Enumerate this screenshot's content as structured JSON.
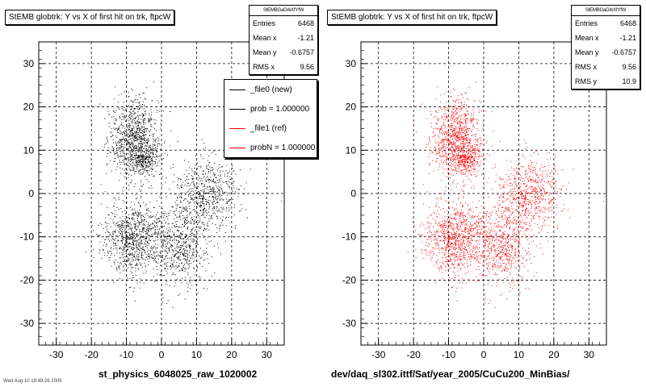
{
  "footer_text": "Wed Aug 10 18:49:26 2005",
  "chart_data": [
    {
      "type": "scatter",
      "title": "StEMB globtrk: Y vs X of first hit on trk, ftpcW",
      "xlabel": "st_physics_6048025_raw_1020002",
      "ylabel": "",
      "xlim": [
        -35,
        35
      ],
      "ylim": [
        -35,
        35
      ],
      "xticks": [
        -30,
        -20,
        -10,
        0,
        10,
        20,
        30
      ],
      "yticks": [
        -30,
        -20,
        -10,
        0,
        10,
        20,
        30
      ],
      "grid": true,
      "color": "#000000",
      "stats": {
        "name": "StEMBGaGrkXfYfW",
        "rows": [
          {
            "label": "Entries",
            "value": "6468"
          },
          {
            "label": "Mean x",
            "value": "-1.21"
          },
          {
            "label": "Mean y",
            "value": "-0.6757"
          },
          {
            "label": "RMS x",
            "value": "9.56"
          }
        ]
      },
      "legend": {
        "placement": "top-right",
        "entries": [
          {
            "label": "_file0 (new)",
            "color": "#000000"
          },
          {
            "label": "prob = 1.000000",
            "color": "#000000"
          },
          {
            "label": "_file1 (ref)",
            "color": "#ff0000"
          },
          {
            "label": "probN = 1.000000",
            "color": "#ff0000"
          }
        ]
      },
      "clusters": [
        {
          "x": -8,
          "y": 13,
          "sx": 3.5,
          "sy": 4.5,
          "n": 900
        },
        {
          "x": -5,
          "y": 8,
          "sx": 2.2,
          "sy": 1.5,
          "n": 300
        },
        {
          "x": 13,
          "y": 0,
          "sx": 4.5,
          "sy": 4.5,
          "n": 650
        },
        {
          "x": -8,
          "y": -10,
          "sx": 4.2,
          "sy": 4.5,
          "n": 950
        },
        {
          "x": 5,
          "y": -12,
          "sx": 4.0,
          "sy": 5.0,
          "n": 650
        }
      ]
    },
    {
      "type": "scatter",
      "title": "StEMB globtrk: Y vs X of first hit on trk, ftpcW",
      "xlabel": "dev/daq_sl302.ittf/Sat/year_2005/CuCu200_MinBias/",
      "ylabel": "",
      "xlim": [
        -35,
        35
      ],
      "ylim": [
        -35,
        35
      ],
      "xticks": [
        -30,
        -20,
        -10,
        0,
        10,
        20,
        30
      ],
      "yticks": [
        -30,
        -20,
        -10,
        0,
        10,
        20,
        30
      ],
      "grid": true,
      "color": "#ff0000",
      "stats": {
        "name": "StEMBGaGrkXfYfW",
        "rows": [
          {
            "label": "Entries",
            "value": "6468"
          },
          {
            "label": "Mean x",
            "value": "-1.21"
          },
          {
            "label": "Mean y",
            "value": "-0.6757"
          },
          {
            "label": "RMS x",
            "value": "9.56"
          },
          {
            "label": "RMS y",
            "value": "10.9"
          }
        ]
      },
      "clusters": [
        {
          "x": -8,
          "y": 13,
          "sx": 3.5,
          "sy": 4.5,
          "n": 900
        },
        {
          "x": -5,
          "y": 8,
          "sx": 2.2,
          "sy": 1.5,
          "n": 300
        },
        {
          "x": 13,
          "y": 0,
          "sx": 4.5,
          "sy": 4.5,
          "n": 650
        },
        {
          "x": -8,
          "y": -10,
          "sx": 4.2,
          "sy": 4.5,
          "n": 950
        },
        {
          "x": 5,
          "y": -12,
          "sx": 4.0,
          "sy": 5.0,
          "n": 650
        }
      ]
    }
  ]
}
